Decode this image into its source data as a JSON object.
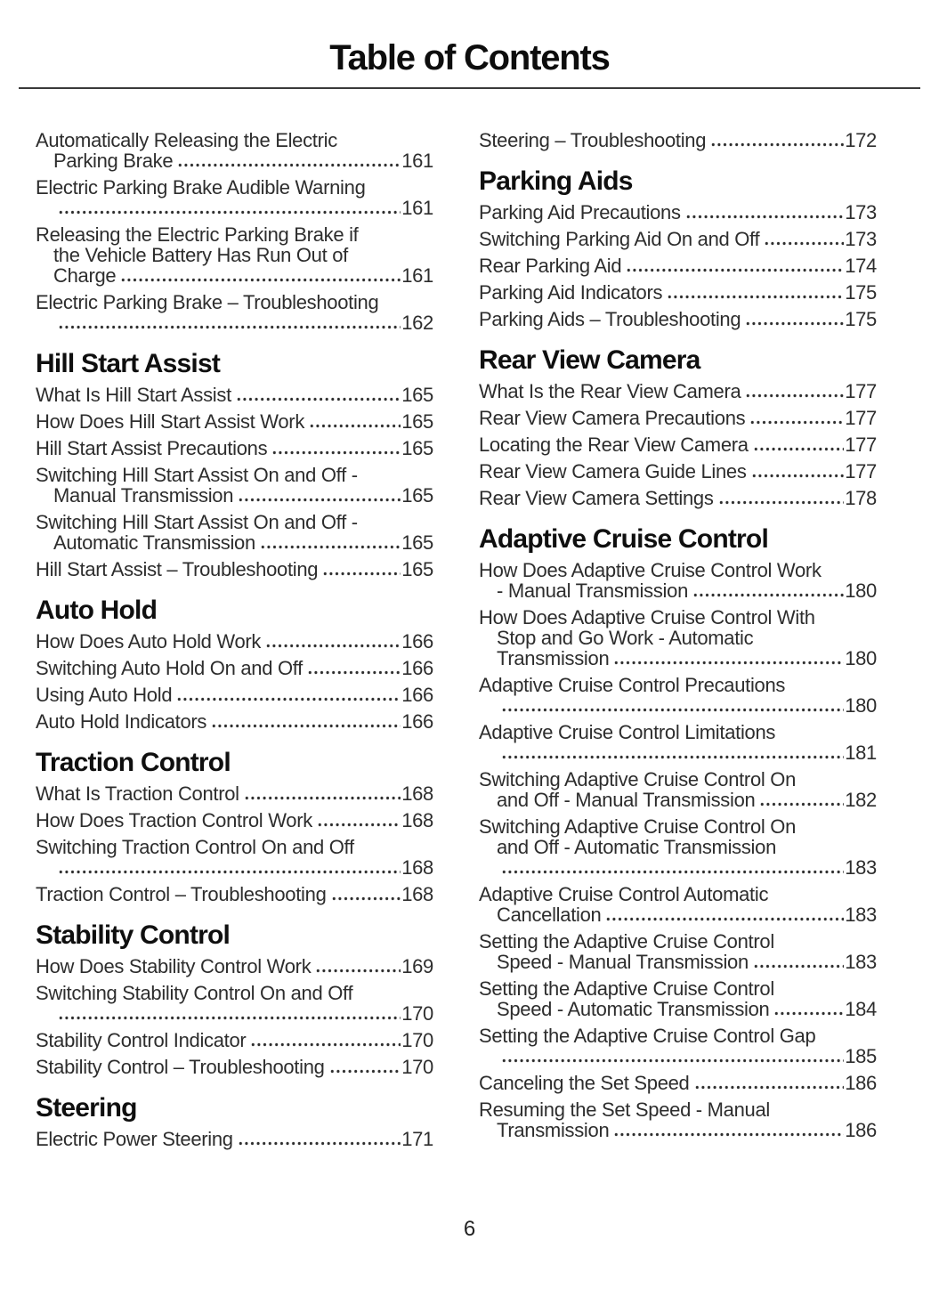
{
  "header": {
    "title": "Table of Contents"
  },
  "footer": {
    "page_number": "6"
  },
  "colors": {
    "background": "#ffffff",
    "body_text": "#2d2d2d",
    "heading_text": "#0f0f0f",
    "rule": "#3a3a3a"
  },
  "columns": [
    {
      "sections": [
        {
          "heading": null,
          "entries": [
            {
              "lines": [
                "Automatically Releasing the Electric",
                "Parking Brake"
              ],
              "page": "161"
            },
            {
              "lines": [
                "Electric Parking Brake Audible Warning",
                ""
              ],
              "page": "161"
            },
            {
              "lines": [
                "Releasing the Electric Parking Brake if",
                "the Vehicle Battery Has Run Out of",
                "Charge"
              ],
              "page": "161"
            },
            {
              "lines": [
                "Electric Parking Brake – Troubleshooting",
                ""
              ],
              "page": "162"
            }
          ]
        },
        {
          "heading": "Hill Start Assist",
          "entries": [
            {
              "lines": [
                "What Is Hill Start Assist"
              ],
              "page": "165"
            },
            {
              "lines": [
                "How Does Hill Start Assist Work"
              ],
              "page": "165"
            },
            {
              "lines": [
                "Hill Start Assist Precautions"
              ],
              "page": "165"
            },
            {
              "lines": [
                "Switching Hill Start Assist On and Off -",
                "Manual Transmission"
              ],
              "page": "165"
            },
            {
              "lines": [
                "Switching Hill Start Assist On and Off -",
                "Automatic Transmission"
              ],
              "page": "165"
            },
            {
              "lines": [
                "Hill Start Assist – Troubleshooting"
              ],
              "page": "165"
            }
          ]
        },
        {
          "heading": "Auto Hold",
          "entries": [
            {
              "lines": [
                "How Does Auto Hold Work"
              ],
              "page": "166"
            },
            {
              "lines": [
                "Switching Auto Hold On and Off"
              ],
              "page": "166"
            },
            {
              "lines": [
                "Using Auto Hold"
              ],
              "page": "166"
            },
            {
              "lines": [
                "Auto Hold Indicators"
              ],
              "page": "166"
            }
          ]
        },
        {
          "heading": "Traction Control",
          "entries": [
            {
              "lines": [
                "What Is Traction Control"
              ],
              "page": "168"
            },
            {
              "lines": [
                "How Does Traction Control Work"
              ],
              "page": "168"
            },
            {
              "lines": [
                "Switching Traction Control On and Off",
                ""
              ],
              "page": "168"
            },
            {
              "lines": [
                "Traction Control – Troubleshooting"
              ],
              "page": "168"
            }
          ]
        },
        {
          "heading": "Stability Control",
          "entries": [
            {
              "lines": [
                "How Does Stability Control Work"
              ],
              "page": "169"
            },
            {
              "lines": [
                "Switching Stability Control On and Off",
                ""
              ],
              "page": "170"
            },
            {
              "lines": [
                "Stability Control Indicator"
              ],
              "page": "170"
            },
            {
              "lines": [
                "Stability Control – Troubleshooting"
              ],
              "page": "170"
            }
          ]
        },
        {
          "heading": "Steering",
          "entries": [
            {
              "lines": [
                "Electric Power Steering"
              ],
              "page": "171"
            }
          ]
        }
      ]
    },
    {
      "sections": [
        {
          "heading": null,
          "entries": [
            {
              "lines": [
                "Steering – Troubleshooting"
              ],
              "page": "172"
            }
          ]
        },
        {
          "heading": "Parking Aids",
          "entries": [
            {
              "lines": [
                "Parking Aid Precautions"
              ],
              "page": "173"
            },
            {
              "lines": [
                "Switching Parking Aid On and Off"
              ],
              "page": "173"
            },
            {
              "lines": [
                "Rear Parking Aid"
              ],
              "page": "174"
            },
            {
              "lines": [
                "Parking Aid Indicators"
              ],
              "page": "175"
            },
            {
              "lines": [
                "Parking Aids – Troubleshooting"
              ],
              "page": "175"
            }
          ]
        },
        {
          "heading": "Rear View Camera",
          "entries": [
            {
              "lines": [
                "What Is the Rear View Camera"
              ],
              "page": "177"
            },
            {
              "lines": [
                "Rear View Camera Precautions"
              ],
              "page": "177"
            },
            {
              "lines": [
                "Locating the Rear View Camera"
              ],
              "page": "177"
            },
            {
              "lines": [
                "Rear View Camera Guide Lines"
              ],
              "page": "177"
            },
            {
              "lines": [
                "Rear View Camera Settings"
              ],
              "page": "178"
            }
          ]
        },
        {
          "heading": "Adaptive Cruise Control",
          "entries": [
            {
              "lines": [
                "How Does Adaptive Cruise Control Work",
                "- Manual Transmission"
              ],
              "page": "180"
            },
            {
              "lines": [
                "How Does Adaptive Cruise Control With",
                "Stop and Go Work - Automatic",
                "Transmission"
              ],
              "page": "180"
            },
            {
              "lines": [
                "Adaptive Cruise Control Precautions",
                ""
              ],
              "page": "180"
            },
            {
              "lines": [
                "Adaptive Cruise Control Limitations",
                ""
              ],
              "page": "181"
            },
            {
              "lines": [
                "Switching Adaptive Cruise Control On",
                "and Off - Manual Transmission"
              ],
              "page": "182"
            },
            {
              "lines": [
                "Switching Adaptive Cruise Control On",
                "and Off - Automatic Transmission",
                ""
              ],
              "page": "183"
            },
            {
              "lines": [
                "Adaptive Cruise Control Automatic",
                "Cancellation"
              ],
              "page": "183"
            },
            {
              "lines": [
                "Setting the Adaptive Cruise Control",
                "Speed - Manual Transmission"
              ],
              "page": "183"
            },
            {
              "lines": [
                "Setting the Adaptive Cruise Control",
                "Speed - Automatic Transmission"
              ],
              "page": "184"
            },
            {
              "lines": [
                "Setting the Adaptive Cruise Control Gap",
                ""
              ],
              "page": "185"
            },
            {
              "lines": [
                "Canceling the Set Speed"
              ],
              "page": "186"
            },
            {
              "lines": [
                "Resuming the Set Speed - Manual",
                "Transmission"
              ],
              "page": "186"
            }
          ]
        }
      ]
    }
  ]
}
